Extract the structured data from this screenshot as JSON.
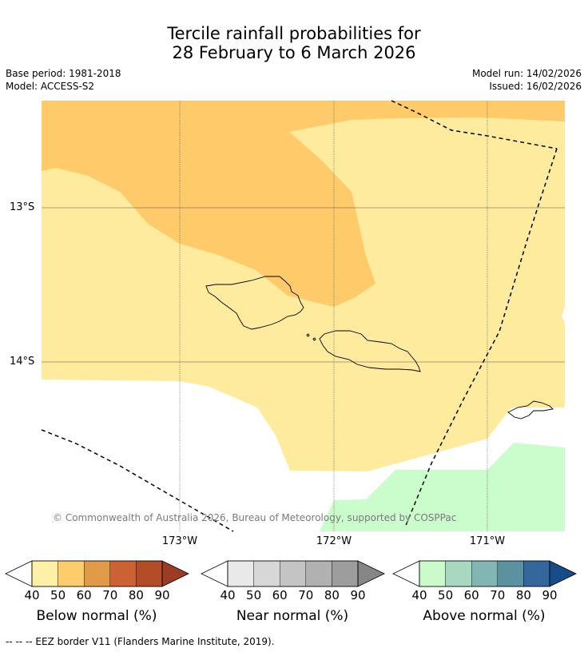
{
  "title": {
    "line1": "Tercile rainfall probabilities for",
    "line2": "28 February to 6 March 2026"
  },
  "meta": {
    "base_period": "Base period: 1981-2018",
    "model": "Model: ACCESS-S2",
    "model_run": "Model run: 14/02/2026",
    "issued": "Issued: 16/02/2026"
  },
  "map": {
    "lat_labels": [
      "13°S",
      "14°S"
    ],
    "lon_labels": [
      "173°W",
      "172°W",
      "171°W"
    ],
    "copyright": "© Commonwealth of Australia 2026, Bureau of Meteorology, supported by COSPPac"
  },
  "legends": [
    {
      "title": "Below normal (%)",
      "ticks": [
        "40",
        "50",
        "60",
        "70",
        "80",
        "90"
      ],
      "colors": [
        "#fff0a8",
        "#fdcd6b",
        "#e09a48",
        "#cc6234",
        "#b24d28"
      ],
      "extend_color": "#9c3c22"
    },
    {
      "title": "Near normal (%)",
      "ticks": [
        "40",
        "50",
        "60",
        "70",
        "80",
        "90"
      ],
      "colors": [
        "#e9e9e9",
        "#d7d7d7",
        "#c4c4c4",
        "#b1b1b1",
        "#9d9d9d"
      ],
      "extend_color": "#868686"
    },
    {
      "title": "Above normal (%)",
      "ticks": [
        "40",
        "50",
        "60",
        "70",
        "80",
        "90"
      ],
      "colors": [
        "#cbfbcb",
        "#a8d8bf",
        "#82b6b4",
        "#5b92a0",
        "#34679c"
      ],
      "extend_color": "#164c8a"
    }
  ],
  "footer": "-- -- -- EEZ border V11 (Flanders Marine Institute, 2019).",
  "colors": {
    "below_40_50": "#ffeb9e",
    "below_50_60": "#ffcb6a",
    "above_40_50": "#cbfccb",
    "grid": "#555555"
  }
}
